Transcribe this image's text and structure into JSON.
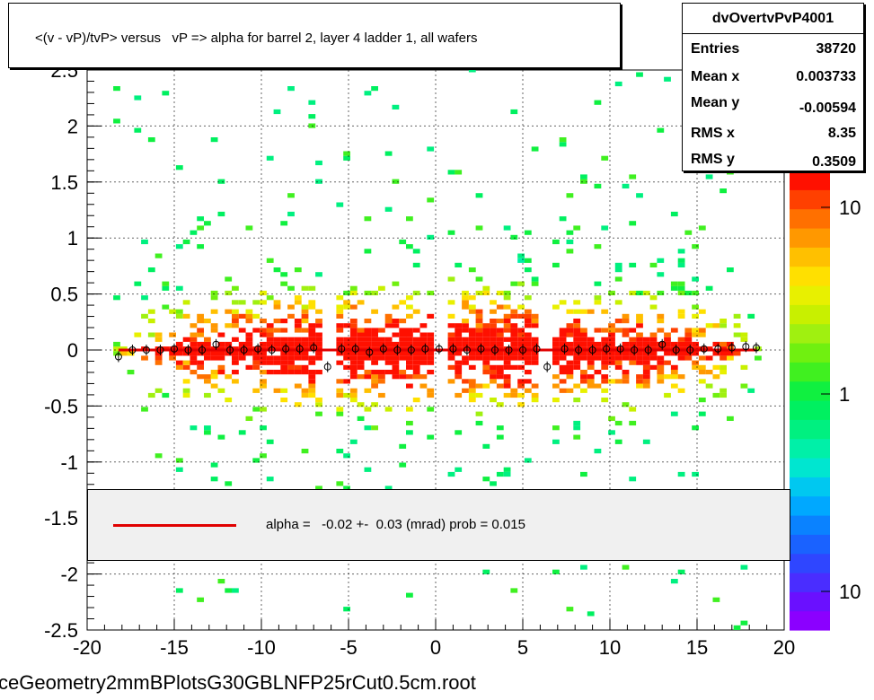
{
  "title": "<(v - vP)/tvP> versus   vP => alpha for barrel 2, layer 4 ladder 1, all wafers",
  "stats": {
    "name": "dvOvertvPvP4001",
    "rows": [
      {
        "label": "Entries",
        "value": "38720"
      },
      {
        "label": "Mean x",
        "value": "0.003733"
      },
      {
        "label": "Mean y",
        "value": "-0.00594"
      },
      {
        "label": "RMS x",
        "value": "8.35"
      },
      {
        "label": "RMS y",
        "value": "0.3509"
      }
    ]
  },
  "fit_legend": "alpha =   -0.02 +-  0.03 (mrad) prob = 0.015",
  "footer": "ceGeometry2mmBPlotsG30GBLNFP25rCut0.5cm.root",
  "colors": {
    "fit_line": "#e00000",
    "profile_marker": "#000000",
    "palette": [
      "#8b00ff",
      "#6a10ff",
      "#4a2dff",
      "#2f46ff",
      "#1a62ff",
      "#0a82ff",
      "#00a8ff",
      "#00c8f0",
      "#00e6d0",
      "#00f0a8",
      "#00f080",
      "#00f060",
      "#10f040",
      "#40f020",
      "#70f010",
      "#a0f010",
      "#c8f000",
      "#e8f000",
      "#ffe000",
      "#ffc000",
      "#ff9800",
      "#ff7000",
      "#ff4000",
      "#ff1000"
    ]
  },
  "chart_data": {
    "type": "heatmap",
    "title": "<(v - vP)/tvP> versus   vP => alpha for barrel 2, layer 4 ladder 1, all wafers",
    "xlabel": "",
    "ylabel": "",
    "xlim": [
      -20,
      20
    ],
    "ylim": [
      -2.5,
      2.5
    ],
    "x_ticks": [
      "-20",
      "-15",
      "-10",
      "-5",
      "0",
      "5",
      "10",
      "15",
      "20"
    ],
    "y_ticks": [
      "-2.5",
      "-2",
      "-1.5",
      "-1",
      "-0.5",
      "0",
      "0.5",
      "1",
      "1.5",
      "2",
      "2.5"
    ],
    "grid": true,
    "z_scale": "log",
    "z_ticks": [
      "10",
      "1",
      "10"
    ],
    "entries": 38720,
    "mean_x": 0.003733,
    "mean_y": -0.00594,
    "rms_x": 8.35,
    "rms_y": 0.3509,
    "density_x_range": [
      -18.5,
      18.5
    ],
    "gaps_x": [
      -6.2,
      0.2,
      6.3
    ],
    "profile": {
      "name": "profile",
      "x": [
        -18.2,
        -17.4,
        -16.6,
        -15.8,
        -15.0,
        -14.2,
        -13.4,
        -12.6,
        -11.8,
        -11.0,
        -10.2,
        -9.4,
        -8.6,
        -7.8,
        -7.0,
        -6.2,
        -5.4,
        -4.6,
        -3.8,
        -3.0,
        -2.2,
        -1.4,
        -0.6,
        0.2,
        1.0,
        1.8,
        2.6,
        3.4,
        4.2,
        5.0,
        5.8,
        6.4,
        7.4,
        8.2,
        9.0,
        9.8,
        10.6,
        11.4,
        12.2,
        13.0,
        13.8,
        14.6,
        15.4,
        16.2,
        17.0,
        17.8,
        18.4
      ],
      "y": [
        -0.06,
        0.0,
        0.0,
        0.0,
        0.01,
        0.0,
        0.0,
        0.05,
        0.0,
        0.0,
        0.01,
        0.0,
        0.01,
        0.01,
        0.02,
        -0.15,
        0.01,
        0.01,
        -0.02,
        0.01,
        0.0,
        0.0,
        0.01,
        0.01,
        0.01,
        0.0,
        0.01,
        0.0,
        0.0,
        0.0,
        0.01,
        -0.15,
        0.01,
        0.0,
        0.0,
        0.01,
        0.01,
        0.0,
        0.0,
        0.05,
        0.0,
        0.0,
        0.01,
        0.01,
        0.02,
        0.03,
        0.02
      ]
    },
    "fit": {
      "name": "fit",
      "slope": -2e-05,
      "intercept": 0.0
    }
  }
}
